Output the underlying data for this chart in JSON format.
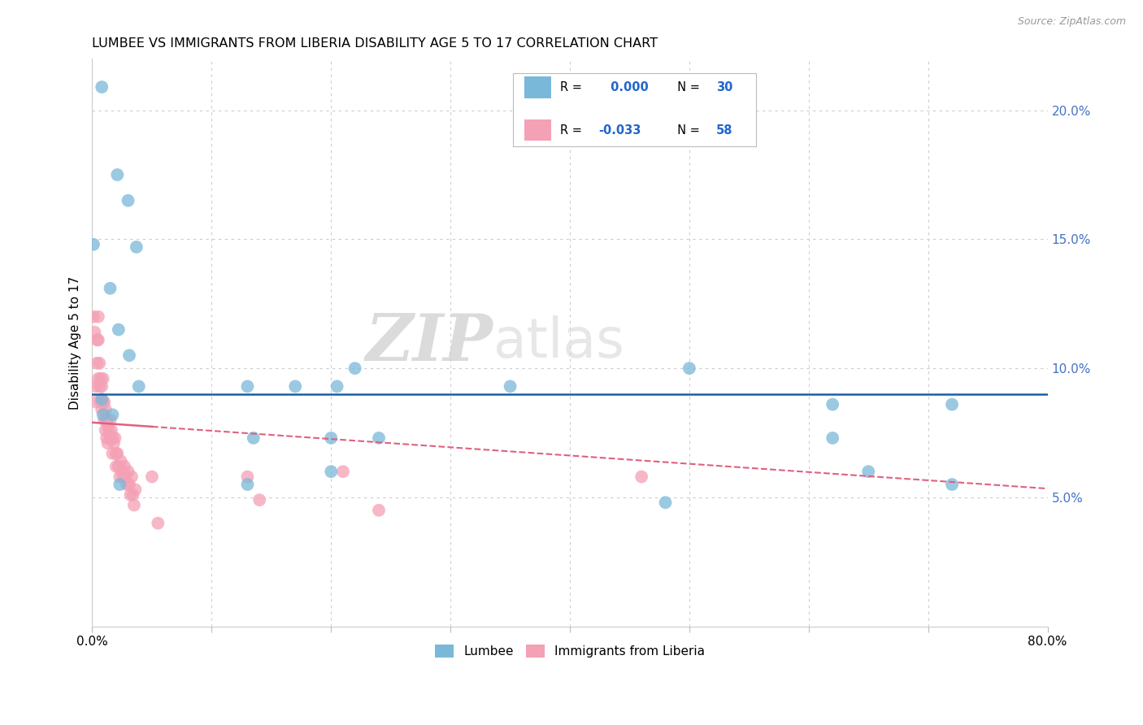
{
  "title": "LUMBEE VS IMMIGRANTS FROM LIBERIA DISABILITY AGE 5 TO 17 CORRELATION CHART",
  "source": "Source: ZipAtlas.com",
  "ylabel": "Disability Age 5 to 17",
  "xlim": [
    0,
    0.8
  ],
  "ylim": [
    0,
    0.22
  ],
  "xticks": [
    0.0,
    0.1,
    0.2,
    0.3,
    0.4,
    0.5,
    0.6,
    0.7,
    0.8
  ],
  "yticks": [
    0.0,
    0.05,
    0.1,
    0.15,
    0.2
  ],
  "yticklabels_right": [
    "",
    "5.0%",
    "10.0%",
    "15.0%",
    "20.0%"
  ],
  "lumbee_R": "0.000",
  "lumbee_N": "30",
  "liberia_R": "-0.033",
  "liberia_N": "58",
  "lumbee_color": "#7ab8d9",
  "liberia_color": "#f4a0b5",
  "lumbee_line_color": "#1a5fa8",
  "liberia_line_color": "#e0607e",
  "watermark_zip": "ZIP",
  "watermark_atlas": "atlas",
  "lumbee_x": [
    0.008,
    0.021,
    0.03,
    0.037,
    0.001,
    0.015,
    0.022,
    0.031,
    0.039,
    0.13,
    0.17,
    0.205,
    0.22,
    0.35,
    0.5,
    0.62,
    0.65,
    0.72,
    0.135,
    0.2,
    0.24,
    0.13,
    0.62,
    0.72,
    0.008,
    0.009,
    0.017,
    0.023,
    0.2,
    0.48
  ],
  "lumbee_y": [
    0.209,
    0.175,
    0.165,
    0.147,
    0.148,
    0.131,
    0.115,
    0.105,
    0.093,
    0.093,
    0.093,
    0.093,
    0.1,
    0.093,
    0.1,
    0.073,
    0.06,
    0.055,
    0.073,
    0.073,
    0.073,
    0.055,
    0.086,
    0.086,
    0.088,
    0.082,
    0.082,
    0.055,
    0.06,
    0.048
  ],
  "liberia_x": [
    0.001,
    0.002,
    0.003,
    0.003,
    0.004,
    0.004,
    0.005,
    0.005,
    0.005,
    0.006,
    0.006,
    0.007,
    0.007,
    0.008,
    0.008,
    0.009,
    0.009,
    0.01,
    0.01,
    0.011,
    0.011,
    0.012,
    0.012,
    0.013,
    0.013,
    0.014,
    0.015,
    0.015,
    0.016,
    0.017,
    0.017,
    0.018,
    0.019,
    0.02,
    0.02,
    0.021,
    0.022,
    0.023,
    0.024,
    0.025,
    0.026,
    0.027,
    0.028,
    0.029,
    0.03,
    0.031,
    0.032,
    0.033,
    0.034,
    0.035,
    0.036,
    0.05,
    0.055,
    0.13,
    0.14,
    0.21,
    0.24,
    0.46
  ],
  "liberia_y": [
    0.12,
    0.114,
    0.093,
    0.087,
    0.111,
    0.102,
    0.12,
    0.111,
    0.096,
    0.102,
    0.093,
    0.096,
    0.087,
    0.093,
    0.084,
    0.096,
    0.087,
    0.087,
    0.08,
    0.084,
    0.076,
    0.08,
    0.073,
    0.078,
    0.071,
    0.076,
    0.08,
    0.073,
    0.076,
    0.073,
    0.067,
    0.071,
    0.073,
    0.067,
    0.062,
    0.067,
    0.062,
    0.058,
    0.064,
    0.06,
    0.058,
    0.062,
    0.058,
    0.055,
    0.06,
    0.055,
    0.051,
    0.058,
    0.051,
    0.047,
    0.053,
    0.058,
    0.04,
    0.058,
    0.049,
    0.06,
    0.045,
    0.058
  ],
  "lumbee_trend_y": 0.09,
  "liberia_trend_intercept": 0.079,
  "liberia_trend_slope": -0.032
}
